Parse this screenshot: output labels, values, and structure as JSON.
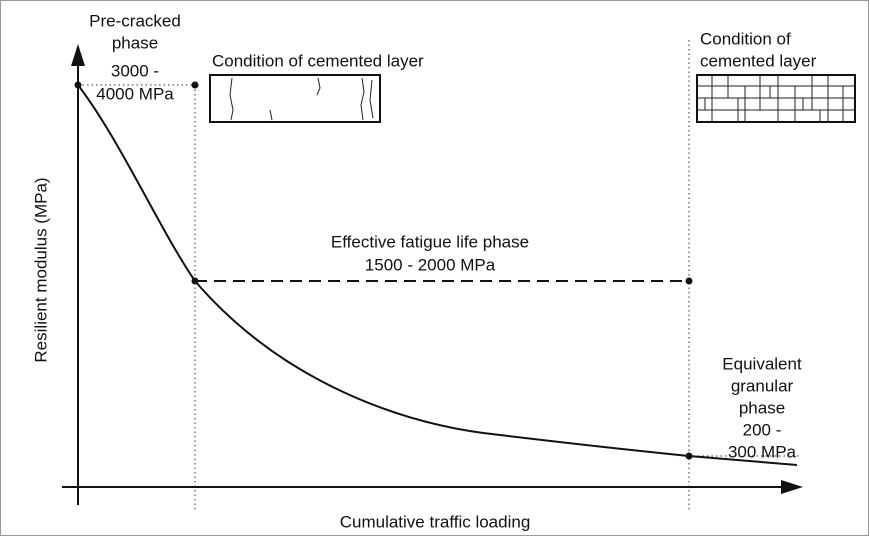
{
  "axes": {
    "y_label": "Resilient modulus (MPa)",
    "x_label": "Cumulative traffic loading"
  },
  "phases": [
    {
      "lines": [
        "Pre-cracked",
        "phase",
        "3000 -",
        "4000 MPa"
      ]
    },
    {
      "lines": [
        "Effective fatigue life phase",
        "1500 - 2000 MPa"
      ]
    },
    {
      "lines": [
        "Equivalent",
        "granular",
        "phase",
        "200 -",
        "300 MPa"
      ]
    }
  ],
  "conditions": [
    {
      "lines": [
        "Condition of cemented layer"
      ]
    },
    {
      "lines": [
        "Condition of",
        "cemented layer"
      ]
    }
  ]
}
